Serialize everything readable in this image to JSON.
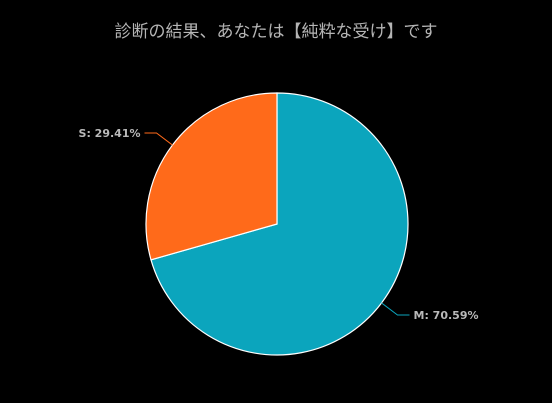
{
  "chart_data": {
    "type": "pie",
    "title": "診断の結果、あなたは【純粋な受け】です",
    "slices": [
      {
        "name": "M",
        "value": 70.59,
        "label": "M: 70.59%",
        "color": "#0ba5bd"
      },
      {
        "name": "S",
        "value": 29.41,
        "label": "S: 29.41%",
        "color": "#ff6a1a"
      }
    ],
    "start_angle_deg": 0,
    "direction": "clockwise",
    "background_color": "#000000",
    "slice_border_color": "#ffffff"
  }
}
